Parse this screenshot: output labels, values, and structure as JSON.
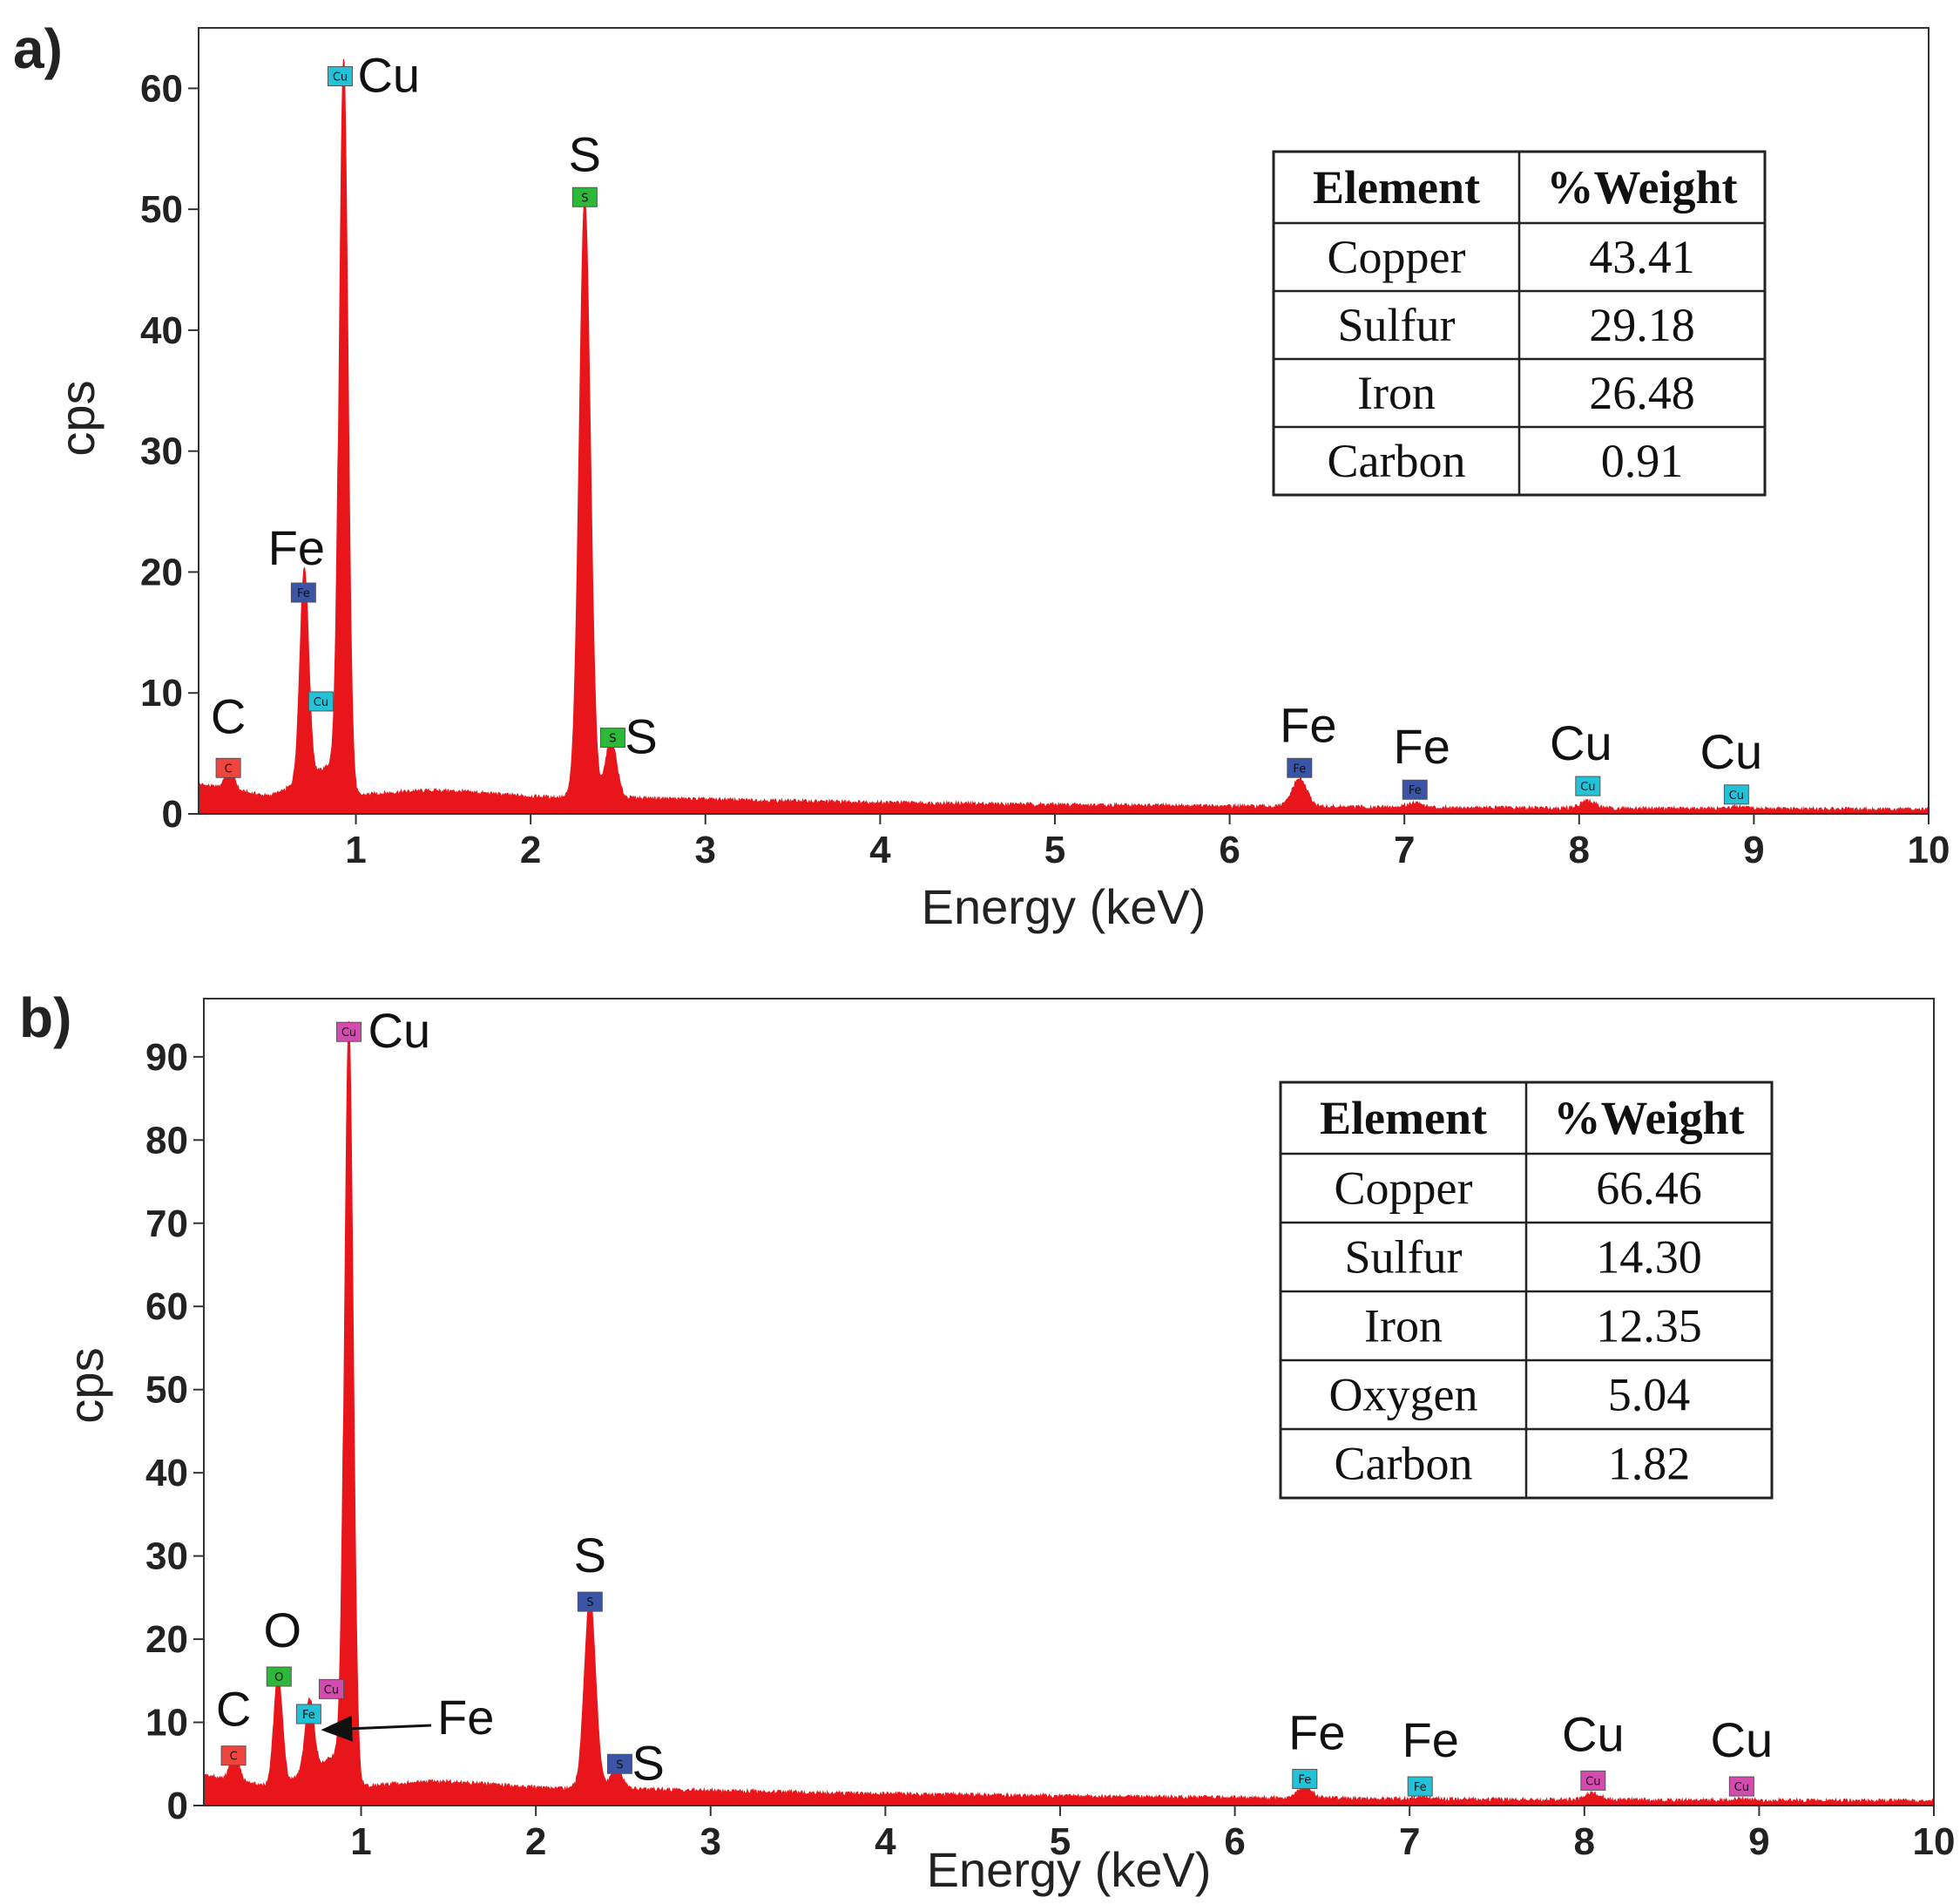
{
  "chart_data": [
    {
      "type": "area",
      "panel_label": "a)",
      "xlabel": "Energy (keV)",
      "ylabel": "cps",
      "xlim": [
        0.1,
        10
      ],
      "ylim": [
        0,
        65
      ],
      "x_ticks": [
        "1",
        "2",
        "3",
        "4",
        "5",
        "6",
        "7",
        "8",
        "9",
        "10"
      ],
      "y_ticks": [
        "0",
        "10",
        "20",
        "30",
        "40",
        "50",
        "60"
      ],
      "grid": false,
      "color": "#e8161b",
      "peaks": [
        {
          "label": "C",
          "energy": 0.277,
          "cps": 2.1
        },
        {
          "label": "Fe",
          "energy": 0.705,
          "cps": 17.5
        },
        {
          "label": "Cu",
          "energy": 0.93,
          "cps": 61.0
        },
        {
          "label": "S",
          "energy": 2.31,
          "cps": 49.5
        },
        {
          "label": "S",
          "energy": 2.46,
          "cps": 4.8
        },
        {
          "label": "Fe",
          "energy": 6.4,
          "cps": 2.3
        },
        {
          "label": "Fe",
          "energy": 7.06,
          "cps": 0.4
        },
        {
          "label": "Cu",
          "energy": 8.05,
          "cps": 0.6
        },
        {
          "label": "Cu",
          "energy": 8.9,
          "cps": 0.2
        }
      ],
      "markers": [
        {
          "label": "C",
          "energy": 0.27,
          "cps": 3.8,
          "color": "#f0443e",
          "text": "C"
        },
        {
          "label": "Fe",
          "energy": 0.7,
          "cps": 18.3,
          "color": "#3a55a8",
          "text": "Fe"
        },
        {
          "label": "Cu",
          "energy": 0.91,
          "cps": 61.0,
          "color": "#22c3d8",
          "text": "Cu"
        },
        {
          "label": "Cu",
          "energy": 0.8,
          "cps": 9.3,
          "color": "#22c3d8",
          "text": "Cu"
        },
        {
          "label": "S",
          "energy": 2.31,
          "cps": 51.0,
          "color": "#2db83a",
          "text": "S"
        },
        {
          "label": "S",
          "energy": 2.47,
          "cps": 6.3,
          "color": "#2db83a",
          "text": "S"
        },
        {
          "label": "Fe",
          "energy": 6.4,
          "cps": 3.8,
          "color": "#3a55a8",
          "text": "Fe"
        },
        {
          "label": "Fe",
          "energy": 7.06,
          "cps": 2.0,
          "color": "#3a55a8",
          "text": "Fe"
        },
        {
          "label": "Cu",
          "energy": 8.05,
          "cps": 2.3,
          "color": "#22c3d8",
          "text": "Cu"
        },
        {
          "label": "Cu",
          "energy": 8.9,
          "cps": 1.6,
          "color": "#22c3d8",
          "text": "Cu"
        }
      ],
      "annotations": [
        "C",
        "Fe",
        "Cu",
        "S",
        "S",
        "Fe",
        "Fe",
        "Cu",
        "Cu"
      ],
      "table": {
        "headers": [
          "Element",
          "%Weight"
        ],
        "rows": [
          [
            "Copper",
            "43.41"
          ],
          [
            "Sulfur",
            "29.18"
          ],
          [
            "Iron",
            "26.48"
          ],
          [
            "Carbon",
            "0.91"
          ]
        ]
      }
    },
    {
      "type": "area",
      "panel_label": "b)",
      "xlabel": "Energy (keV)",
      "ylabel": "cps",
      "xlim": [
        0.1,
        10
      ],
      "ylim": [
        0,
        97
      ],
      "x_ticks": [
        "1",
        "2",
        "3",
        "4",
        "5",
        "6",
        "7",
        "8",
        "9",
        "10"
      ],
      "y_ticks": [
        "0",
        "10",
        "20",
        "30",
        "40",
        "50",
        "60",
        "70",
        "80",
        "90"
      ],
      "grid": false,
      "color": "#e8161b",
      "peaks": [
        {
          "label": "C",
          "energy": 0.277,
          "cps": 3.6
        },
        {
          "label": "O",
          "energy": 0.525,
          "cps": 13.3
        },
        {
          "label": "Fe",
          "energy": 0.705,
          "cps": 8.6
        },
        {
          "label": "Cu",
          "energy": 0.93,
          "cps": 92.0
        },
        {
          "label": "S",
          "energy": 2.31,
          "cps": 23.0
        },
        {
          "label": "S",
          "energy": 2.46,
          "cps": 2.6
        },
        {
          "label": "Fe",
          "energy": 6.4,
          "cps": 1.2
        },
        {
          "label": "Fe",
          "energy": 7.06,
          "cps": 0.2
        },
        {
          "label": "Cu",
          "energy": 8.05,
          "cps": 0.8
        },
        {
          "label": "Cu",
          "energy": 8.9,
          "cps": 0.15
        }
      ],
      "markers": [
        {
          "label": "C",
          "energy": 0.27,
          "cps": 6.0,
          "color": "#f0443e",
          "text": "C"
        },
        {
          "label": "O",
          "energy": 0.53,
          "cps": 15.5,
          "color": "#2db83a",
          "text": "O"
        },
        {
          "label": "Fe",
          "energy": 0.7,
          "cps": 11.0,
          "color": "#22c3d8",
          "text": "Fe"
        },
        {
          "label": "Cu",
          "energy": 0.83,
          "cps": 14.0,
          "color": "#d44bb0",
          "text": "Cu"
        },
        {
          "label": "Cu",
          "energy": 0.93,
          "cps": 93.0,
          "color": "#d44bb0",
          "text": "Cu"
        },
        {
          "label": "S",
          "energy": 2.31,
          "cps": 24.5,
          "color": "#3a55a8",
          "text": "S"
        },
        {
          "label": "S",
          "energy": 2.48,
          "cps": 5.0,
          "color": "#3a55a8",
          "text": "S"
        },
        {
          "label": "Fe",
          "energy": 6.4,
          "cps": 3.2,
          "color": "#22c3d8",
          "text": "Fe"
        },
        {
          "label": "Fe",
          "energy": 7.06,
          "cps": 2.3,
          "color": "#22c3d8",
          "text": "Fe"
        },
        {
          "label": "Cu",
          "energy": 8.05,
          "cps": 3.0,
          "color": "#d44bb0",
          "text": "Cu"
        },
        {
          "label": "Cu",
          "energy": 8.9,
          "cps": 2.3,
          "color": "#d44bb0",
          "text": "Cu"
        }
      ],
      "annotations": [
        "C",
        "O",
        "Cu",
        "Fe",
        "S",
        "S",
        "Fe",
        "Fe",
        "Cu",
        "Cu"
      ],
      "table": {
        "headers": [
          "Element",
          "%Weight"
        ],
        "rows": [
          [
            "Copper",
            "66.46"
          ],
          [
            "Sulfur",
            "14.30"
          ],
          [
            "Iron",
            "12.35"
          ],
          [
            "Oxygen",
            "5.04"
          ],
          [
            "Carbon",
            "1.82"
          ]
        ]
      }
    }
  ]
}
